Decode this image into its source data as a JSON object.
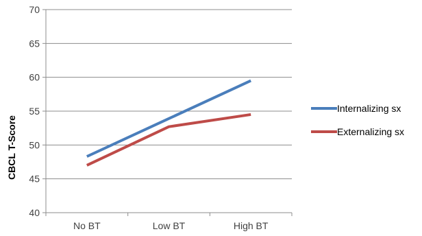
{
  "chart_data": {
    "type": "line",
    "title": "",
    "xlabel": "",
    "ylabel": "CBCL T-Score",
    "categories": [
      "No BT",
      "Low BT",
      "High BT"
    ],
    "ylim": [
      40,
      70
    ],
    "yticks": [
      40,
      45,
      50,
      55,
      60,
      65,
      70
    ],
    "ytick_labels": [
      "40",
      "45",
      "50",
      "55",
      "60",
      "65",
      "70"
    ],
    "grid": true,
    "legend": "right",
    "series": [
      {
        "name": "Internalizing sx",
        "values": [
          48.3,
          53.9,
          59.5
        ],
        "color": "#4a7ebb"
      },
      {
        "name": "Externalizing sx",
        "values": [
          47.0,
          52.7,
          54.5
        ],
        "color": "#be4b48"
      }
    ]
  }
}
